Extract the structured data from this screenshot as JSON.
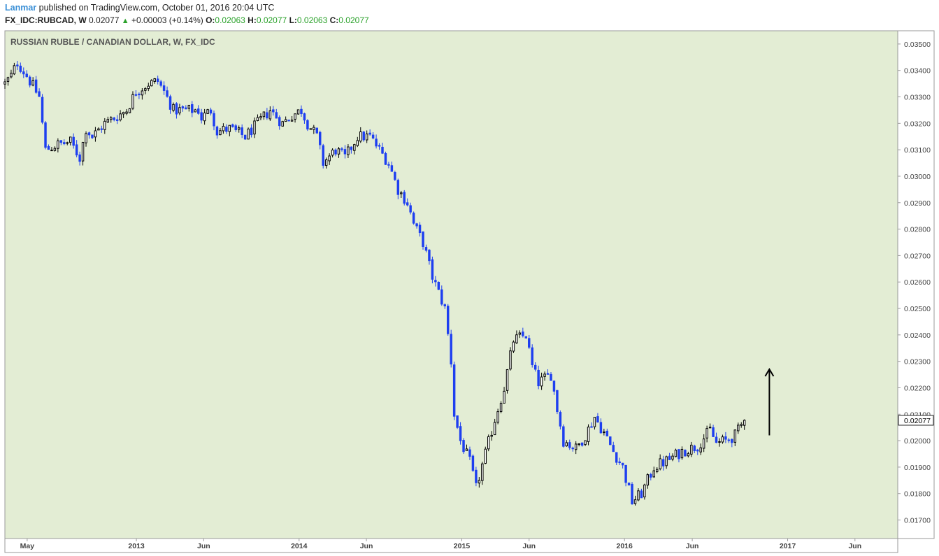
{
  "header": {
    "author": "Lanmar",
    "published_text": " published on TradingView.com, October 01, 2016 20:04 UTC",
    "symbol": "FX_IDC:RUBCAD, W",
    "last": "0.02077",
    "change_arrow": "▲",
    "change": "+0.00003 (+0.14%)",
    "o_label": "O:",
    "o_value": "0.02063",
    "h_label": "H:",
    "h_value": "0.02077",
    "l_label": "L:",
    "l_value": "0.02063",
    "c_label": "C:",
    "c_value": "0.02077"
  },
  "colors": {
    "plot_background": "#e3edd4",
    "up_candle": "#000000",
    "down_candle": "#1e3ff0",
    "axis_text": "#444444",
    "change_green": "#2aa12a",
    "author_blue": "#3a8fd6"
  },
  "chart_data": {
    "type": "candlestick",
    "title": "RUSSIAN RUBLE / CANADIAN DOLLAR, W, FX_IDC",
    "xlabel": "",
    "ylabel": "",
    "ylim": [
      0.0163,
      0.0355
    ],
    "xlim": [
      "2012-03-12",
      "2017-09-05"
    ],
    "grid": false,
    "price_label": "0.02077",
    "y_ticks": [
      "0.01700",
      "0.01800",
      "0.01900",
      "0.02000",
      "0.02100",
      "0.02200",
      "0.02300",
      "0.02400",
      "0.02500",
      "0.02600",
      "0.02700",
      "0.02800",
      "0.02900",
      "0.03000",
      "0.03100",
      "0.03200",
      "0.03300",
      "0.03400",
      "0.03500"
    ],
    "x_ticks": [
      {
        "label": "May",
        "date": "2012-05-01"
      },
      {
        "label": "2013",
        "date": "2013-01-01"
      },
      {
        "label": "Jun",
        "date": "2013-06-01"
      },
      {
        "label": "2014",
        "date": "2014-01-01"
      },
      {
        "label": "Jun",
        "date": "2014-06-01"
      },
      {
        "label": "2015",
        "date": "2015-01-01"
      },
      {
        "label": "Jun",
        "date": "2015-06-01"
      },
      {
        "label": "2016",
        "date": "2016-01-01"
      },
      {
        "label": "Jun",
        "date": "2016-06-01"
      },
      {
        "label": "2017",
        "date": "2017-01-01"
      },
      {
        "label": "Jun",
        "date": "2017-06-01"
      }
    ],
    "close_path": [
      [
        "2012-03-12",
        0.0335
      ],
      [
        "2012-03-26",
        0.0338
      ],
      [
        "2012-04-09",
        0.0343
      ],
      [
        "2012-04-30",
        0.0338
      ],
      [
        "2012-05-28",
        0.033
      ],
      [
        "2012-06-04",
        0.032
      ],
      [
        "2012-06-11",
        0.031
      ],
      [
        "2012-07-09",
        0.0312
      ],
      [
        "2012-08-06",
        0.0313
      ],
      [
        "2012-08-27",
        0.0307
      ],
      [
        "2012-09-10",
        0.0318
      ],
      [
        "2012-09-24",
        0.0315
      ],
      [
        "2012-10-22",
        0.032
      ],
      [
        "2012-11-12",
        0.0322
      ],
      [
        "2012-12-10",
        0.0325
      ],
      [
        "2012-12-31",
        0.0332
      ],
      [
        "2013-01-28",
        0.0335
      ],
      [
        "2013-02-18",
        0.0336
      ],
      [
        "2013-03-04",
        0.0332
      ],
      [
        "2013-03-25",
        0.0325
      ],
      [
        "2013-05-20",
        0.0325
      ],
      [
        "2013-05-27",
        0.0322
      ],
      [
        "2013-06-17",
        0.0325
      ],
      [
        "2013-07-01",
        0.0317
      ],
      [
        "2013-07-29",
        0.0318
      ],
      [
        "2013-09-02",
        0.0315
      ],
      [
        "2013-09-30",
        0.032
      ],
      [
        "2013-10-28",
        0.0325
      ],
      [
        "2013-11-25",
        0.032
      ],
      [
        "2013-12-16",
        0.0323
      ],
      [
        "2014-01-06",
        0.0325
      ],
      [
        "2014-01-20",
        0.032
      ],
      [
        "2014-02-10",
        0.0315
      ],
      [
        "2014-02-24",
        0.0305
      ],
      [
        "2014-03-24",
        0.031
      ],
      [
        "2014-04-14",
        0.0307
      ],
      [
        "2014-05-12",
        0.0315
      ],
      [
        "2014-06-09",
        0.0315
      ],
      [
        "2014-06-30",
        0.031
      ],
      [
        "2014-07-21",
        0.0305
      ],
      [
        "2014-08-11",
        0.0295
      ],
      [
        "2014-09-01",
        0.029
      ],
      [
        "2014-09-15",
        0.0282
      ],
      [
        "2014-10-06",
        0.0275
      ],
      [
        "2014-10-27",
        0.0262
      ],
      [
        "2014-11-24",
        0.025
      ],
      [
        "2014-12-08",
        0.023
      ],
      [
        "2014-12-15",
        0.021
      ],
      [
        "2014-12-29",
        0.02
      ],
      [
        "2015-01-19",
        0.0192
      ],
      [
        "2015-02-02",
        0.0182
      ],
      [
        "2015-02-23",
        0.0195
      ],
      [
        "2015-03-16",
        0.0208
      ],
      [
        "2015-04-06",
        0.022
      ],
      [
        "2015-04-27",
        0.0238
      ],
      [
        "2015-05-25",
        0.024
      ],
      [
        "2015-06-08",
        0.0228
      ],
      [
        "2015-06-22",
        0.0222
      ],
      [
        "2015-07-20",
        0.0225
      ],
      [
        "2015-08-03",
        0.0212
      ],
      [
        "2015-08-17",
        0.02
      ],
      [
        "2015-09-14",
        0.0197
      ],
      [
        "2015-10-05",
        0.0202
      ],
      [
        "2015-10-26",
        0.0209
      ],
      [
        "2015-11-16",
        0.0203
      ],
      [
        "2015-12-07",
        0.0196
      ],
      [
        "2015-12-28",
        0.019
      ],
      [
        "2016-01-18",
        0.0177
      ],
      [
        "2016-02-08",
        0.018
      ],
      [
        "2016-03-07",
        0.019
      ],
      [
        "2016-04-11",
        0.0193
      ],
      [
        "2016-05-09",
        0.0196
      ],
      [
        "2016-06-13",
        0.0198
      ],
      [
        "2016-07-11",
        0.0204
      ],
      [
        "2016-07-25",
        0.0199
      ],
      [
        "2016-08-15",
        0.02
      ],
      [
        "2016-09-05",
        0.0202
      ],
      [
        "2016-09-26",
        0.02077
      ]
    ],
    "annotations": [
      {
        "type": "arrow",
        "direction": "up",
        "date": "2016-11-21",
        "from": 0.0202,
        "to": 0.0227
      }
    ]
  }
}
